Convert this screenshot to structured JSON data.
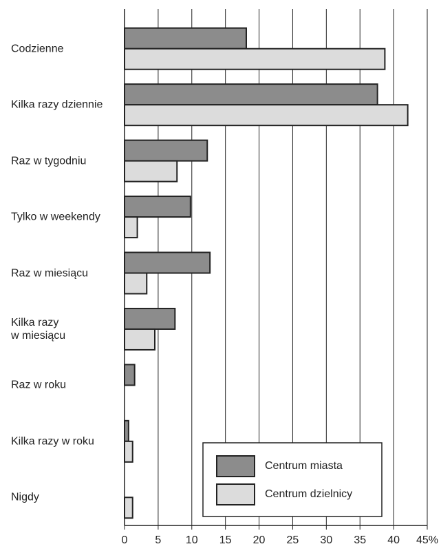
{
  "chart_data": {
    "type": "bar",
    "orientation": "horizontal",
    "categories": [
      "Codzienne",
      "Kilka razy dziennie",
      "Raz w tygodniu",
      "Tylko w weekendy",
      "Raz w miesiącu",
      "Kilka razy\nw miesiącu",
      "Raz w roku",
      "Kilka razy w roku",
      "Nigdy"
    ],
    "series": [
      {
        "name": "Centrum miasta",
        "color": "#8c8c8c",
        "values": [
          18.1,
          37.6,
          12.3,
          9.8,
          12.7,
          7.5,
          1.5,
          0.6,
          0
        ]
      },
      {
        "name": "Centrum dzielnicy",
        "color": "#dcdcdc",
        "values": [
          38.7,
          42.1,
          7.8,
          1.9,
          3.3,
          4.5,
          0,
          1.2,
          1.2
        ]
      }
    ],
    "xlim": [
      0,
      45
    ],
    "xticks": [
      0,
      5,
      10,
      15,
      20,
      25,
      30,
      35,
      40,
      {
        "value": 45,
        "label": "45%"
      }
    ],
    "grid": true,
    "legend": "lower right"
  }
}
